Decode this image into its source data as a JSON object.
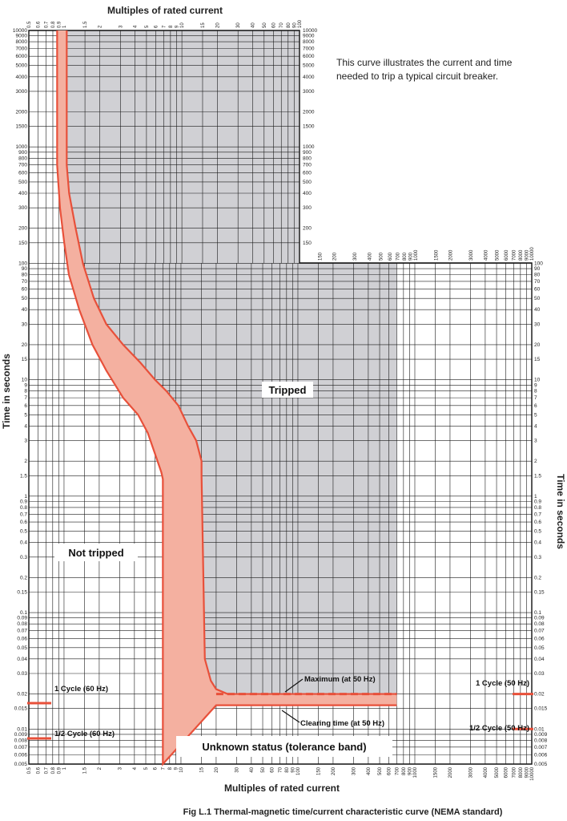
{
  "chart_data": {
    "type": "line",
    "title": "Fig L.1  Thermal-magnetic time/current characteristic curve (NEMA standard)",
    "note": "This curve illustrates the current and time needed to trip a typical circuit breaker.",
    "xlabel_top": "Multiples of rated current",
    "xlabel": "Multiples of rated current",
    "ylabel": "Time in seconds",
    "xscale": "log",
    "yscale": "log",
    "xlim": [
      0.5,
      10000
    ],
    "ylim": [
      0.005,
      10000
    ],
    "grid": true,
    "x_ticks": [
      "0.5",
      "0.6",
      "0.7",
      "0.8",
      "0.9",
      "1",
      "1.5",
      "2",
      "3",
      "4",
      "5",
      "6",
      "7",
      "8",
      "9",
      "10",
      "15",
      "20",
      "30",
      "40",
      "50",
      "60",
      "70",
      "80",
      "90",
      "100",
      "150",
      "200",
      "300",
      "400",
      "500",
      "600",
      "700",
      "800",
      "900",
      "1000",
      "1500",
      "2000",
      "3000",
      "4000",
      "5000",
      "6000",
      "7000",
      "8000",
      "9000",
      "10000"
    ],
    "y_ticks": [
      "10000",
      "9000",
      "8000",
      "7000",
      "6000",
      "5000",
      "4000",
      "3000",
      "2000",
      "1500",
      "1000",
      "900",
      "800",
      "700",
      "600",
      "500",
      "400",
      "300",
      "200",
      "150",
      "100",
      "90",
      "80",
      "70",
      "60",
      "50",
      "40",
      "30",
      "20",
      "15",
      "10",
      "9",
      "8",
      "7",
      "6",
      "5",
      "4",
      "3",
      "2",
      "1.5",
      "1",
      "0.9",
      "0.8",
      "0.7",
      "0.6",
      "0.5",
      "0.4",
      "0.3",
      "0.2",
      "0.15",
      "0.1",
      "0.09",
      "0.08",
      "0.07",
      "0.06",
      "0.05",
      "0.04",
      "0.03",
      "0.02",
      "0.015",
      "0.01",
      "0.009",
      "0.008",
      "0.007",
      "0.006",
      "0.005"
    ],
    "series": [
      {
        "name": "Maximum (at 50 Hz)",
        "x": [
          1.05,
          1.05,
          1.1,
          1.25,
          1.45,
          1.8,
          2.3,
          3.2,
          4.5,
          6,
          7.5,
          9.5,
          11.5,
          13.5,
          15,
          15,
          16,
          18,
          20,
          25,
          700
        ],
        "y": [
          10000,
          700,
          400,
          200,
          100,
          50,
          30,
          20,
          14,
          10,
          8,
          6,
          4,
          3,
          2,
          1.5,
          0.04,
          0.026,
          0.022,
          0.02,
          0.02
        ]
      },
      {
        "name": "Clearing time (at 50 Hz)",
        "x": [
          0.87,
          0.87,
          0.92,
          1.0,
          1.1,
          1.35,
          1.75,
          2.3,
          3.2,
          4.3,
          5.2,
          6.1,
          6.8,
          7,
          7,
          20,
          700
        ],
        "y": [
          10000,
          700,
          300,
          150,
          80,
          40,
          20,
          12,
          7,
          5,
          3.5,
          2.2,
          1.6,
          1.4,
          0.005,
          0.016,
          0.016
        ]
      }
    ],
    "reference_lines": {
      "one_cycle_60hz": {
        "label": "1 Cycle (60 Hz)",
        "y": 0.0167
      },
      "half_cycle_60hz": {
        "label": "1/2 Cycle (60 Hz)",
        "y": 0.0083
      },
      "one_cycle_50hz": {
        "label": "1 Cycle (50 Hz)",
        "y": 0.02
      },
      "half_cycle_50hz": {
        "label": "1/2 Cycle (50 Hz)",
        "y": 0.01
      }
    },
    "regions": {
      "tripped": "Tripped",
      "not_tripped": "Not tripped",
      "unknown": "Unknown status (tolerance band)"
    },
    "annotations": {
      "maximum": "Maximum (at 50 Hz)",
      "clearing": "Clearing time (at 50 Hz)"
    },
    "colors": {
      "band_fill": "#f4b0a0",
      "curve": "#e8503a",
      "tripped_fill": "#d0d0d4",
      "grid": "#1a1a1a"
    }
  }
}
